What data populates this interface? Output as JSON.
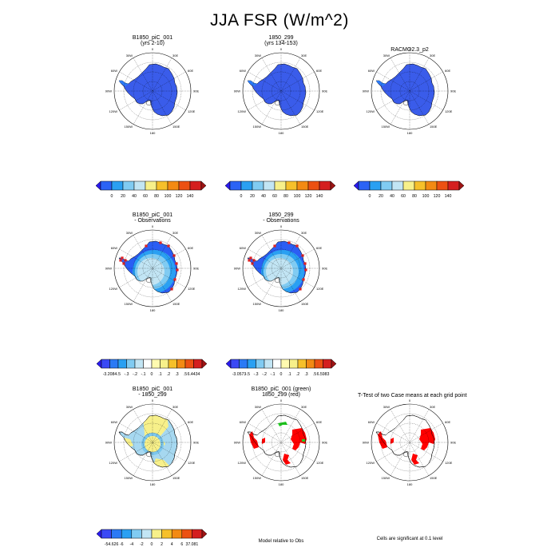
{
  "title": "JJA FSR (W/m^2)",
  "degree_labels": {
    "top": "0",
    "bottom": "180",
    "left": "90W",
    "right": "90E",
    "top_left": "30W",
    "top_right": "30E",
    "upper_left": "60W",
    "upper_right": "60E",
    "lower_left": "120W",
    "lower_right": "120E",
    "bottom_left": "150W",
    "bottom_right": "150E"
  },
  "colorbars": {
    "absolute": {
      "colors": [
        "#2a1bf0",
        "#2b63f5",
        "#2aa0f2",
        "#80cbf2",
        "#c2e5f4",
        "#f7f08a",
        "#f6c02a",
        "#f38a13",
        "#ec5112",
        "#d41f1f",
        "#9e1414"
      ],
      "labels": [
        "0",
        "20",
        "40",
        "60",
        "80",
        "100",
        "120",
        "140"
      ]
    },
    "diff_case1": {
      "colors": [
        "#2a1bf0",
        "#3a49f5",
        "#2b7af5",
        "#2aa0f2",
        "#80cbf2",
        "#c2e5f4",
        "#ffffff",
        "#fffab0",
        "#f7f08a",
        "#f6c02a",
        "#f38a13",
        "#ec5112",
        "#d41f1f",
        "#9e1414"
      ],
      "labels": [
        "-3.2084",
        "-.5",
        "-.3",
        "-.2",
        "-.1",
        "0",
        ".1",
        ".2",
        ".3",
        ".5",
        "6.4434"
      ]
    },
    "diff_case2": {
      "colors": [
        "#2a1bf0",
        "#3a49f5",
        "#2b7af5",
        "#2aa0f2",
        "#80cbf2",
        "#c2e5f4",
        "#ffffff",
        "#fffab0",
        "#f7f08a",
        "#f6c02a",
        "#f38a13",
        "#ec5112",
        "#d41f1f",
        "#9e1414"
      ],
      "labels": [
        "-3.0573",
        "-.5",
        "-.3",
        "-.2",
        "-.1",
        "0",
        ".1",
        ".2",
        ".3",
        ".5",
        "6.5983"
      ]
    },
    "case_diff": {
      "colors": [
        "#2a1bf0",
        "#3a49f5",
        "#2b7af5",
        "#2aa0f2",
        "#80cbf2",
        "#c2e5f4",
        "#f7f08a",
        "#f6c02a",
        "#f38a13",
        "#ec5112",
        "#d41f1f",
        "#9e1414"
      ],
      "labels": [
        "-54.626",
        "-6",
        "-4",
        "-2",
        "0",
        "2",
        "4",
        "6",
        "37.081"
      ]
    }
  },
  "panels": [
    {
      "id": "p1",
      "title": [
        "B1850_piC_001",
        "(yrs 2-10)"
      ],
      "kind": "absolute"
    },
    {
      "id": "p2",
      "title": [
        "1850_299",
        "(yrs 134-153)"
      ],
      "kind": "absolute"
    },
    {
      "id": "p3",
      "title": [
        "RACMO2.3_p2"
      ],
      "kind": "absolute"
    },
    {
      "id": "p4",
      "title": [
        "B1850_piC_001",
        "- Observations"
      ],
      "kind": "diff"
    },
    {
      "id": "p5",
      "title": [
        "1850_299",
        "- Observations"
      ],
      "kind": "diff"
    },
    {
      "id": "p6",
      "title": [
        "B1850_piC_001",
        "- 1850_299"
      ],
      "kind": "case_diff"
    },
    {
      "id": "p7",
      "title": [
        "B1850_piC_001 (green)",
        "1850_299 (red)"
      ],
      "kind": "relative"
    },
    {
      "id": "p8",
      "title": [
        "T-Test of two Case means at each grid point"
      ],
      "kind": "ttest"
    }
  ],
  "notes": {
    "relative": "Model relative to Obs",
    "ttest": "Cells are significant at 0.1 level"
  },
  "chart_data": [
    {
      "type": "heatmap",
      "panel": "B1850_piC_001 (yrs 2-10)",
      "projection": "south polar stereographic",
      "field": "FSR",
      "season": "JJA",
      "units": "W/m^2",
      "color_levels": [
        0,
        20,
        40,
        60,
        80,
        100,
        120,
        140
      ],
      "dominant_range": [
        0,
        20
      ]
    },
    {
      "type": "heatmap",
      "panel": "1850_299 (yrs 134-153)",
      "projection": "south polar stereographic",
      "color_levels": [
        0,
        20,
        40,
        60,
        80,
        100,
        120,
        140
      ],
      "dominant_range": [
        0,
        20
      ]
    },
    {
      "type": "heatmap",
      "panel": "RACMO2.3_p2",
      "projection": "south polar stereographic",
      "color_levels": [
        0,
        20,
        40,
        60,
        80,
        100,
        120,
        140
      ],
      "dominant_range": [
        0,
        20
      ]
    },
    {
      "type": "heatmap",
      "panel": "B1850_piC_001 - Observations",
      "color_levels": [
        -0.5,
        -0.3,
        -0.2,
        -0.1,
        0,
        0.1,
        0.2,
        0.3,
        0.5
      ],
      "min": -3.2084,
      "max": 6.4434
    },
    {
      "type": "heatmap",
      "panel": "1850_299 - Observations",
      "color_levels": [
        -0.5,
        -0.3,
        -0.2,
        -0.1,
        0,
        0.1,
        0.2,
        0.3,
        0.5
      ],
      "min": -3.0573,
      "max": 6.5983
    },
    {
      "type": "heatmap",
      "panel": "B1850_piC_001 - 1850_299",
      "color_levels": [
        -6,
        -4,
        -2,
        0,
        2,
        4,
        6
      ],
      "min": -54.626,
      "max": 37.081
    },
    {
      "type": "heatmap",
      "panel": "B1850_piC_001 (green) 1850_299 (red)",
      "series": [
        {
          "name": "B1850_piC_001",
          "color": "green"
        },
        {
          "name": "1850_299",
          "color": "red"
        }
      ]
    },
    {
      "type": "heatmap",
      "panel": "T-Test of two Case means at each grid point",
      "significance_level": 0.1
    }
  ]
}
